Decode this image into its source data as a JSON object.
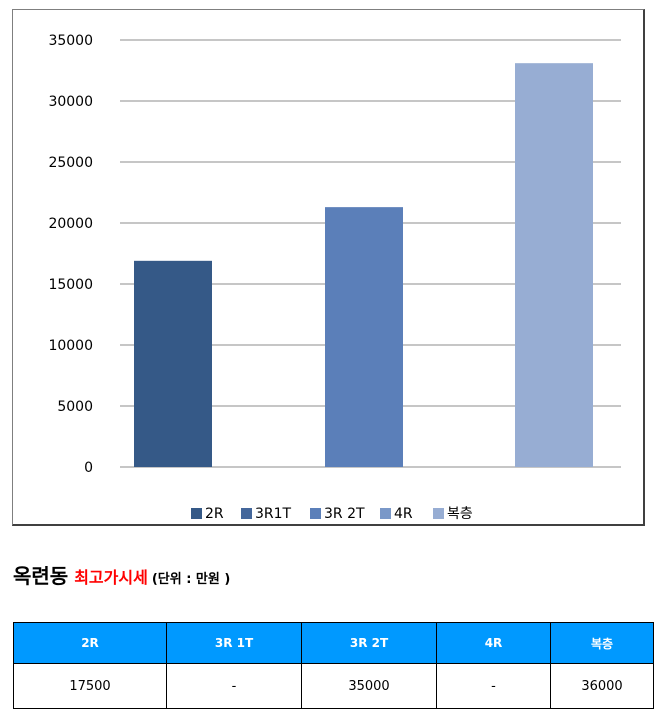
{
  "chart_data": {
    "type": "bar",
    "categories": [
      "2R",
      "3R1T",
      "3R 2T",
      "4R",
      "복층"
    ],
    "series": [
      {
        "name": "2R",
        "values": [
          16900,
          null,
          null,
          null,
          null
        ]
      },
      {
        "name": "3R1T",
        "values": [
          null,
          null,
          null,
          null,
          null
        ]
      },
      {
        "name": "3R 2T",
        "values": [
          null,
          null,
          21300,
          null,
          null
        ]
      },
      {
        "name": "4R",
        "values": [
          null,
          null,
          null,
          null,
          null
        ]
      },
      {
        "name": "복층",
        "values": [
          null,
          null,
          null,
          null,
          33100
        ]
      }
    ],
    "bars": [
      {
        "category": "2R",
        "value": 16900,
        "color": "#355987"
      },
      {
        "category": "3R 2T",
        "value": 21300,
        "color": "#5b7fb9"
      },
      {
        "category": "복층",
        "value": 33100,
        "color": "#97add3"
      }
    ],
    "legend": [
      {
        "label": "2R",
        "color": "#355987"
      },
      {
        "label": "3R1T",
        "color": "#44679b"
      },
      {
        "label": "3R 2T",
        "color": "#5b7fb9"
      },
      {
        "label": "4R",
        "color": "#7a98c8"
      },
      {
        "label": "복층",
        "color": "#97add3"
      }
    ],
    "yticks": [
      "0",
      "5000",
      "10000",
      "15000",
      "20000",
      "25000",
      "30000",
      "35000"
    ],
    "ylim": [
      0,
      35000
    ],
    "grid": true,
    "legend_position": "bottom",
    "title": "",
    "xlabel": "",
    "ylabel": ""
  },
  "heading": {
    "location": "옥련동",
    "title": "최고가시세",
    "unit": "(단위 : 만원 )"
  },
  "table": {
    "headers": [
      "2R",
      "3R 1T",
      "3R 2T",
      "4R",
      "복층"
    ],
    "rows": [
      [
        "17500",
        "-",
        "35000",
        "-",
        "36000"
      ]
    ]
  }
}
